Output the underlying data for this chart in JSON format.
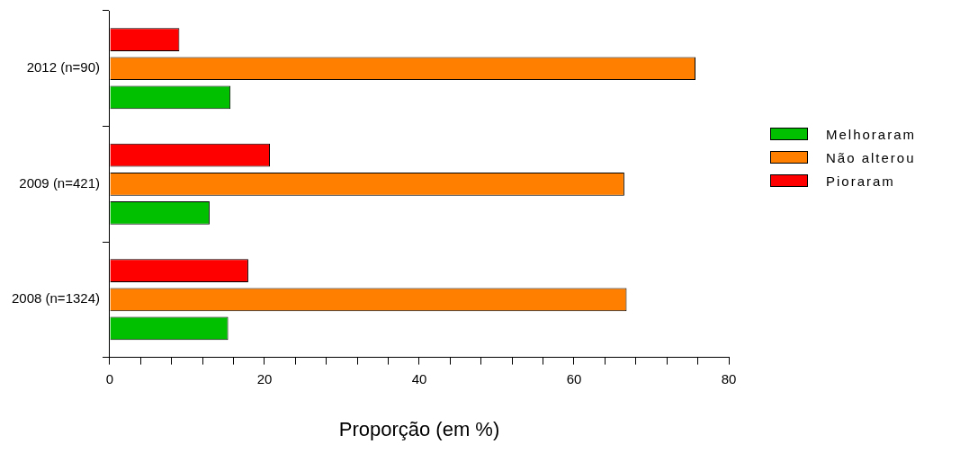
{
  "chart_data": {
    "type": "bar",
    "orientation": "horizontal",
    "xlabel": "Proporção (em %)",
    "categories": [
      "2012 (n=90)",
      "2009 (n=421)",
      "2008 (n=1324)"
    ],
    "series": [
      {
        "name": "Melhoraram",
        "color": "#00c000",
        "values": [
          15.6,
          12.9,
          15.3
        ]
      },
      {
        "name": "Não alterou",
        "color": "#ff8000",
        "values": [
          75.7,
          66.5,
          66.8
        ]
      },
      {
        "name": "Pioraram",
        "color": "#ff0000",
        "values": [
          9.0,
          20.7,
          17.9
        ]
      }
    ],
    "xlim": [
      0,
      80
    ],
    "xticks": [
      0,
      {
        "value": 4,
        "label": null
      },
      {
        "value": 8,
        "label": null
      },
      {
        "value": 12,
        "label": null
      },
      {
        "value": 16,
        "label": null
      },
      20,
      {
        "value": 24,
        "label": null
      },
      {
        "value": 28,
        "label": null
      },
      {
        "value": 32,
        "label": null
      },
      {
        "value": 36,
        "label": null
      },
      40,
      {
        "value": 44,
        "label": null
      },
      {
        "value": 48,
        "label": null
      },
      {
        "value": 52,
        "label": null
      },
      {
        "value": 56,
        "label": null
      },
      60,
      {
        "value": 64,
        "label": null
      },
      {
        "value": 68,
        "label": null
      },
      {
        "value": 72,
        "label": null
      },
      {
        "value": 76,
        "label": null
      },
      80
    ],
    "grid": false,
    "legend": "right"
  }
}
